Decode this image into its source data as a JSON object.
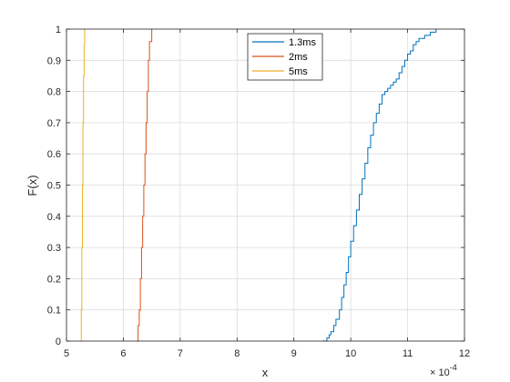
{
  "chart_data": {
    "type": "line",
    "title": "",
    "xlabel": "x",
    "ylabel": "F(x)",
    "xlim": [
      5,
      12
    ],
    "ylim": [
      0,
      1
    ],
    "x_exponent_label": "× 10",
    "x_exponent_power": "-4",
    "x_ticks": [
      "5",
      "6",
      "7",
      "8",
      "9",
      "10",
      "11",
      "12"
    ],
    "y_ticks": [
      "0",
      "0.1",
      "0.2",
      "0.3",
      "0.4",
      "0.5",
      "0.6",
      "0.7",
      "0.8",
      "0.9",
      "1"
    ],
    "grid": true,
    "legend_position": "top-center",
    "series": [
      {
        "name": "1.3ms",
        "color": "#0072BD",
        "x": [
          9.5,
          9.58,
          9.62,
          9.65,
          9.7,
          9.74,
          9.8,
          9.84,
          9.88,
          9.92,
          9.96,
          10.0,
          10.05,
          10.1,
          10.15,
          10.2,
          10.25,
          10.3,
          10.35,
          10.4,
          10.45,
          10.5,
          10.55,
          10.6,
          10.65,
          10.7,
          10.75,
          10.8,
          10.85,
          10.9,
          10.95,
          11.0,
          11.05,
          11.1,
          11.15,
          11.2,
          11.3,
          11.4,
          11.5
        ],
        "y": [
          0.0,
          0.01,
          0.02,
          0.03,
          0.05,
          0.07,
          0.1,
          0.14,
          0.18,
          0.22,
          0.27,
          0.32,
          0.37,
          0.42,
          0.47,
          0.52,
          0.57,
          0.62,
          0.66,
          0.7,
          0.73,
          0.76,
          0.79,
          0.8,
          0.81,
          0.82,
          0.83,
          0.84,
          0.86,
          0.88,
          0.9,
          0.92,
          0.93,
          0.95,
          0.96,
          0.97,
          0.98,
          0.99,
          1.0
        ]
      },
      {
        "name": "2ms",
        "color": "#D95319",
        "x": [
          6.22,
          6.26,
          6.28,
          6.3,
          6.32,
          6.34,
          6.36,
          6.38,
          6.4,
          6.42,
          6.44,
          6.46,
          6.5
        ],
        "y": [
          0.0,
          0.05,
          0.1,
          0.2,
          0.3,
          0.4,
          0.5,
          0.6,
          0.7,
          0.8,
          0.9,
          0.96,
          1.0
        ]
      },
      {
        "name": "5ms",
        "color": "#EDB120",
        "x": [
          5.25,
          5.26,
          5.27,
          5.28,
          5.29,
          5.3,
          5.31,
          5.32
        ],
        "y": [
          0.0,
          0.1,
          0.3,
          0.5,
          0.7,
          0.85,
          0.95,
          1.0
        ]
      }
    ]
  }
}
